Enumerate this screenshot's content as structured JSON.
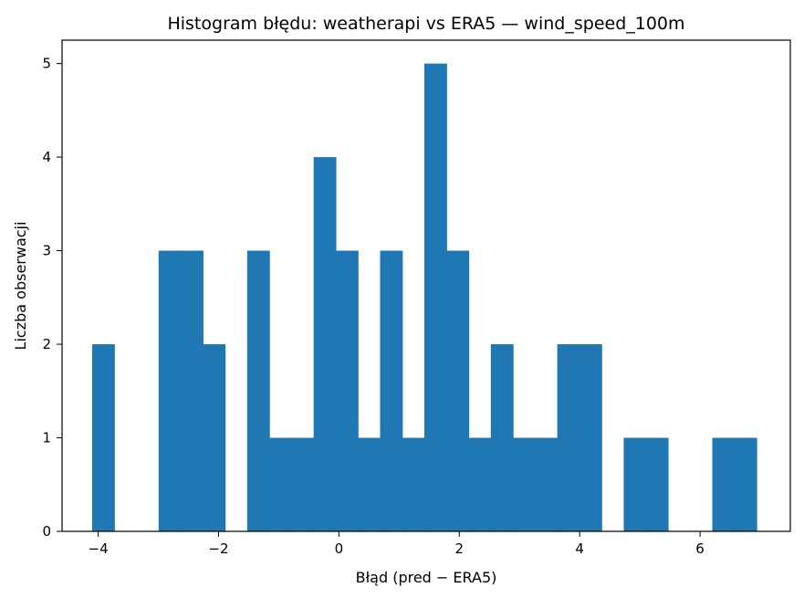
{
  "chart_data": {
    "type": "bar",
    "title": "Histogram błędu: weatherapi vs ERA5 — wind_speed_100m",
    "xlabel": "Błąd (pred − ERA5)",
    "ylabel": "Liczba obserwacji",
    "xlim": [
      -4.6,
      7.5
    ],
    "ylim": [
      0,
      5.25
    ],
    "bin_start": -4.1,
    "bin_width": 0.368,
    "counts": [
      2,
      0,
      0,
      3,
      3,
      2,
      0,
      3,
      1,
      1,
      4,
      3,
      1,
      3,
      1,
      5,
      3,
      1,
      2,
      1,
      1,
      2,
      2,
      0,
      1,
      1,
      0,
      0,
      1,
      1
    ],
    "xticks": [
      -4,
      -2,
      0,
      2,
      4,
      6
    ],
    "xtick_labels": [
      "−4",
      "−2",
      "0",
      "2",
      "4",
      "6"
    ],
    "yticks": [
      0,
      1,
      2,
      3,
      4,
      5
    ],
    "ytick_labels": [
      "0",
      "1",
      "2",
      "3",
      "4",
      "5"
    ],
    "bar_color": "#1f77b4",
    "grid": false
  }
}
